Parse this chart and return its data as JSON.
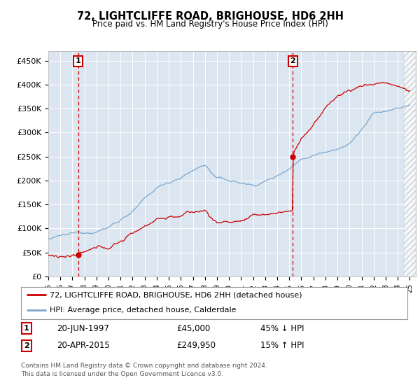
{
  "title": "72, LIGHTCLIFFE ROAD, BRIGHOUSE, HD6 2HH",
  "subtitle": "Price paid vs. HM Land Registry's House Price Index (HPI)",
  "legend_line1": "72, LIGHTCLIFFE ROAD, BRIGHOUSE, HD6 2HH (detached house)",
  "legend_line2": "HPI: Average price, detached house, Calderdale",
  "footnote": "Contains HM Land Registry data © Crown copyright and database right 2024.\nThis data is licensed under the Open Government Licence v3.0.",
  "annotation1_label": "1",
  "annotation1_date": "20-JUN-1997",
  "annotation1_price": "£45,000",
  "annotation1_hpi": "45% ↓ HPI",
  "annotation1_year": 1997.47,
  "annotation1_value": 45000,
  "annotation2_label": "2",
  "annotation2_date": "20-APR-2015",
  "annotation2_price": "£249,950",
  "annotation2_hpi": "15% ↑ HPI",
  "annotation2_year": 2015.3,
  "annotation2_value": 249950,
  "property_color": "#cc0000",
  "hpi_color": "#7ba7cc",
  "bg_color": "#dce6f1",
  "plot_bg_color": "#dce6f1",
  "ylim": [
    0,
    470000
  ],
  "xlim_start": 1995,
  "xlim_end": 2025.5,
  "yticks": [
    0,
    50000,
    100000,
    150000,
    200000,
    250000,
    300000,
    350000,
    400000,
    450000
  ],
  "ytick_labels": [
    "£0",
    "£50K",
    "£100K",
    "£150K",
    "£200K",
    "£250K",
    "£300K",
    "£350K",
    "£400K",
    "£450K"
  ],
  "xtick_years": [
    1995,
    1996,
    1997,
    1998,
    1999,
    2000,
    2001,
    2002,
    2003,
    2004,
    2005,
    2006,
    2007,
    2008,
    2009,
    2010,
    2011,
    2012,
    2013,
    2014,
    2015,
    2016,
    2017,
    2018,
    2019,
    2020,
    2021,
    2022,
    2023,
    2024,
    2025
  ]
}
